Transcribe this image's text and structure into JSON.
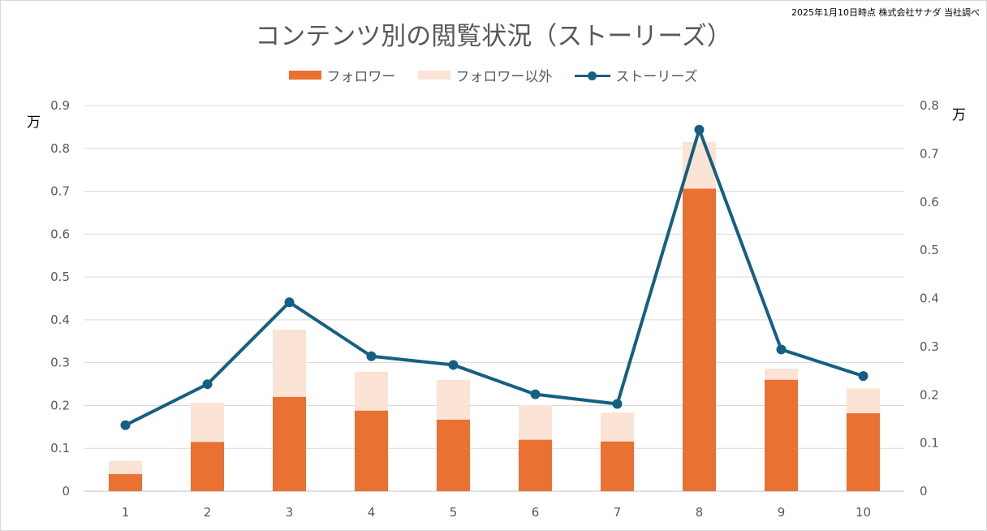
{
  "source_note": "2025年1月10日時点 株式会社サナダ 当社調べ",
  "chart_data": {
    "type": "bar",
    "title": "コンテンツ別の閲覧状況（ストーリーズ）",
    "categories": [
      "1",
      "2",
      "3",
      "4",
      "5",
      "6",
      "7",
      "8",
      "9",
      "10"
    ],
    "series": [
      {
        "name": "フォロワー",
        "type": "bar",
        "axis": "left",
        "color": "#E97132",
        "values": [
          0.04,
          0.115,
          0.22,
          0.188,
          0.167,
          0.12,
          0.116,
          0.706,
          0.26,
          0.182
        ]
      },
      {
        "name": "フォロワー以外",
        "type": "bar",
        "axis": "left",
        "color": "#FBE3D6",
        "values": [
          0.031,
          0.092,
          0.157,
          0.091,
          0.093,
          0.081,
          0.067,
          0.109,
          0.026,
          0.058
        ]
      },
      {
        "name": "ストーリーズ",
        "type": "line",
        "axis": "right",
        "color": "#156082",
        "values": [
          0.137,
          0.222,
          0.392,
          0.28,
          0.262,
          0.201,
          0.181,
          0.75,
          0.294,
          0.239
        ]
      }
    ],
    "stacked": true,
    "y_left": {
      "unit": "万",
      "min": 0,
      "max": 0.9,
      "ticks": [
        "0",
        "0.1",
        "0.2",
        "0.3",
        "0.4",
        "0.5",
        "0.6",
        "0.7",
        "0.8",
        "0.9"
      ]
    },
    "y_right": {
      "unit": "万",
      "min": 0,
      "max": 0.8,
      "ticks": [
        "0",
        "0.1",
        "0.2",
        "0.3",
        "0.4",
        "0.5",
        "0.6",
        "0.7",
        "0.8"
      ]
    },
    "grid": true,
    "legend_position": "top"
  }
}
